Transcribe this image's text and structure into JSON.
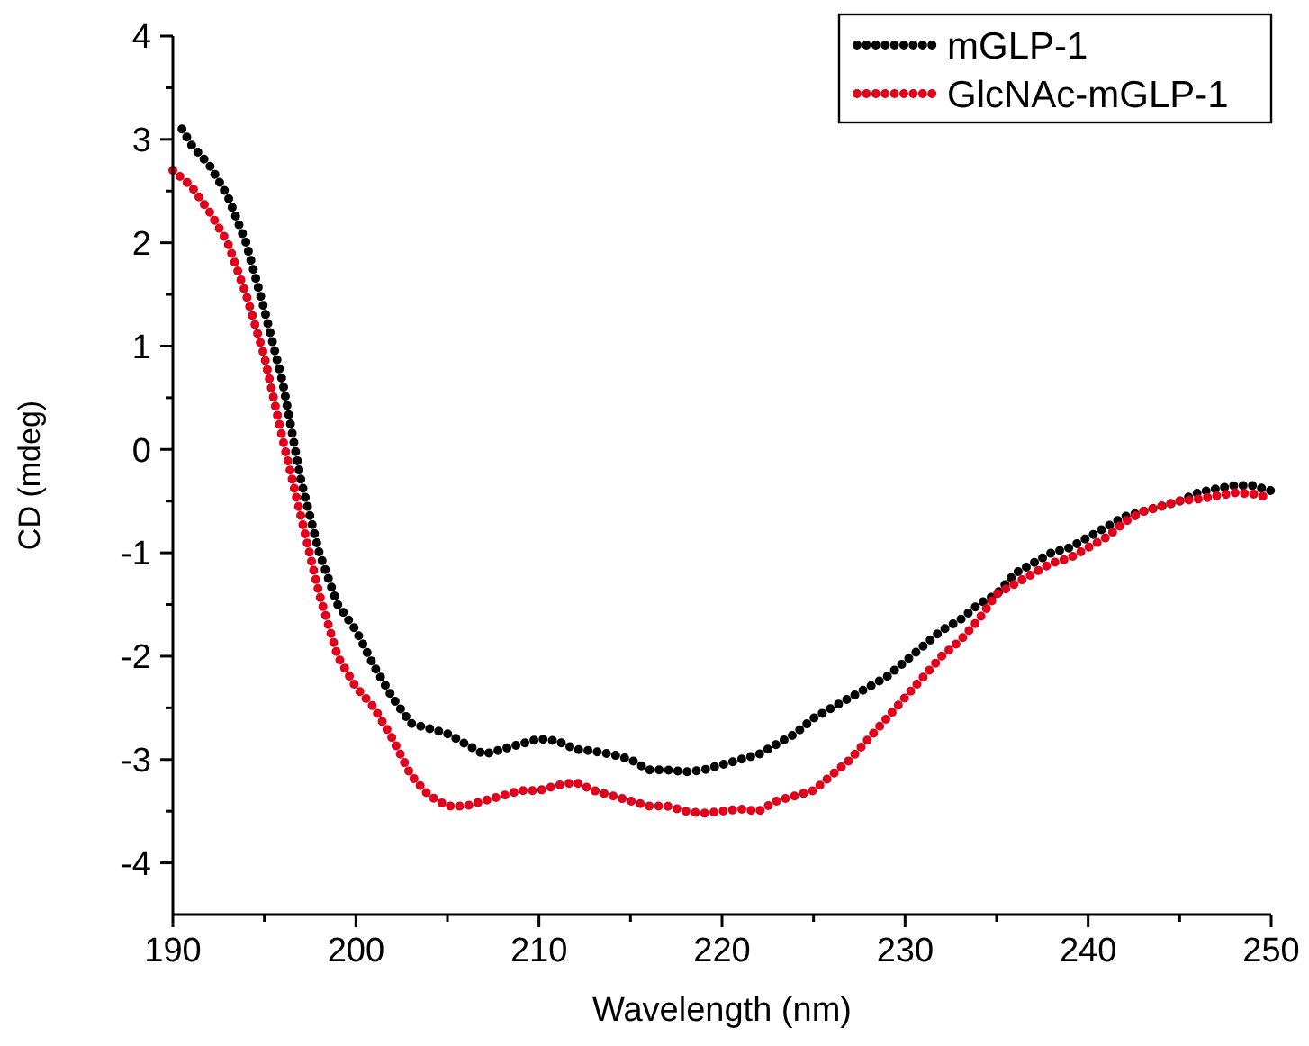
{
  "chart_data": {
    "type": "line",
    "xlabel": "Wavelength (nm)",
    "ylabel": "CD (mdeg)",
    "x": [
      190,
      191,
      192,
      193,
      194,
      195,
      196,
      197,
      198,
      199,
      200,
      201,
      202,
      203,
      204,
      205,
      206,
      207,
      208,
      209,
      210,
      211,
      212,
      213,
      214,
      215,
      216,
      217,
      218,
      219,
      220,
      221,
      222,
      223,
      224,
      225,
      226,
      227,
      228,
      229,
      230,
      231,
      232,
      233,
      234,
      235,
      236,
      237,
      238,
      239,
      240,
      241,
      242,
      243,
      244,
      245,
      246,
      247,
      248,
      249,
      250
    ],
    "series": [
      {
        "name": "mGLP-1",
        "color": "#000000",
        "x": [
          190.5,
          191,
          192,
          193,
          194,
          195,
          196,
          197,
          198,
          199,
          200,
          201,
          202,
          203,
          204,
          205,
          206,
          207,
          208,
          209,
          210,
          211,
          212,
          213,
          214,
          215,
          216,
          217,
          218,
          219,
          220,
          221,
          222,
          223,
          224,
          225,
          226,
          227,
          228,
          229,
          230,
          231,
          232,
          233,
          234,
          235,
          236,
          237,
          238,
          239,
          240,
          241,
          242,
          243,
          244,
          245,
          246,
          247,
          248,
          249,
          250
        ],
        "values": [
          3.1,
          2.95,
          2.75,
          2.45,
          2.0,
          1.35,
          0.65,
          -0.3,
          -1.0,
          -1.5,
          -1.75,
          -2.1,
          -2.4,
          -2.65,
          -2.7,
          -2.75,
          -2.85,
          -2.95,
          -2.9,
          -2.85,
          -2.8,
          -2.82,
          -2.9,
          -2.92,
          -2.95,
          -3.0,
          -3.1,
          -3.1,
          -3.12,
          -3.1,
          -3.05,
          -3.0,
          -2.95,
          -2.85,
          -2.75,
          -2.6,
          -2.5,
          -2.4,
          -2.3,
          -2.2,
          -2.05,
          -1.9,
          -1.75,
          -1.65,
          -1.5,
          -1.4,
          -1.2,
          -1.1,
          -1.0,
          -0.95,
          -0.85,
          -0.75,
          -0.65,
          -0.6,
          -0.55,
          -0.5,
          -0.42,
          -0.38,
          -0.35,
          -0.35,
          -0.4
        ]
      },
      {
        "name": "GlcNAc-mGLP-1",
        "color": "#e2001a",
        "values": [
          2.7,
          2.55,
          2.3,
          2.0,
          1.5,
          0.9,
          0.1,
          -0.65,
          -1.4,
          -2.0,
          -2.3,
          -2.5,
          -2.8,
          -3.15,
          -3.35,
          -3.45,
          -3.45,
          -3.4,
          -3.35,
          -3.3,
          -3.3,
          -3.25,
          -3.22,
          -3.3,
          -3.35,
          -3.4,
          -3.45,
          -3.45,
          -3.5,
          -3.52,
          -3.5,
          -3.48,
          -3.5,
          -3.4,
          -3.35,
          -3.3,
          -3.15,
          -3.0,
          -2.8,
          -2.6,
          -2.4,
          -2.2,
          -2.0,
          -1.85,
          -1.65,
          -1.4,
          -1.3,
          -1.2,
          -1.1,
          -1.05,
          -0.95,
          -0.85,
          -0.7,
          -0.6,
          -0.55,
          -0.5,
          -0.48,
          -0.45,
          -0.42,
          -0.43,
          -0.47
        ]
      }
    ],
    "xlim": [
      190,
      250
    ],
    "xticks": [
      190,
      {
        "value": 195,
        "label": null
      },
      200,
      {
        "value": 205,
        "label": null
      },
      210,
      {
        "value": 215,
        "label": null
      },
      220,
      {
        "value": 225,
        "label": null
      },
      230,
      {
        "value": 235,
        "label": null
      },
      240,
      {
        "value": 245,
        "label": null
      },
      250
    ],
    "ylim": [
      -4.5,
      4
    ],
    "yticks": [
      -4,
      {
        "value": -3.5,
        "label": null
      },
      -3,
      {
        "value": -2.5,
        "label": null
      },
      -2,
      {
        "value": -1.5,
        "label": null
      },
      -1,
      {
        "value": -0.5,
        "label": null
      },
      0,
      {
        "value": 0.5,
        "label": null
      },
      1,
      {
        "value": 1.5,
        "label": null
      },
      2,
      {
        "value": 2.5,
        "label": null
      },
      3,
      {
        "value": 3.5,
        "label": null
      },
      4
    ],
    "grid": false,
    "legend": "top right",
    "marker": "none",
    "line_style": "dotted"
  }
}
